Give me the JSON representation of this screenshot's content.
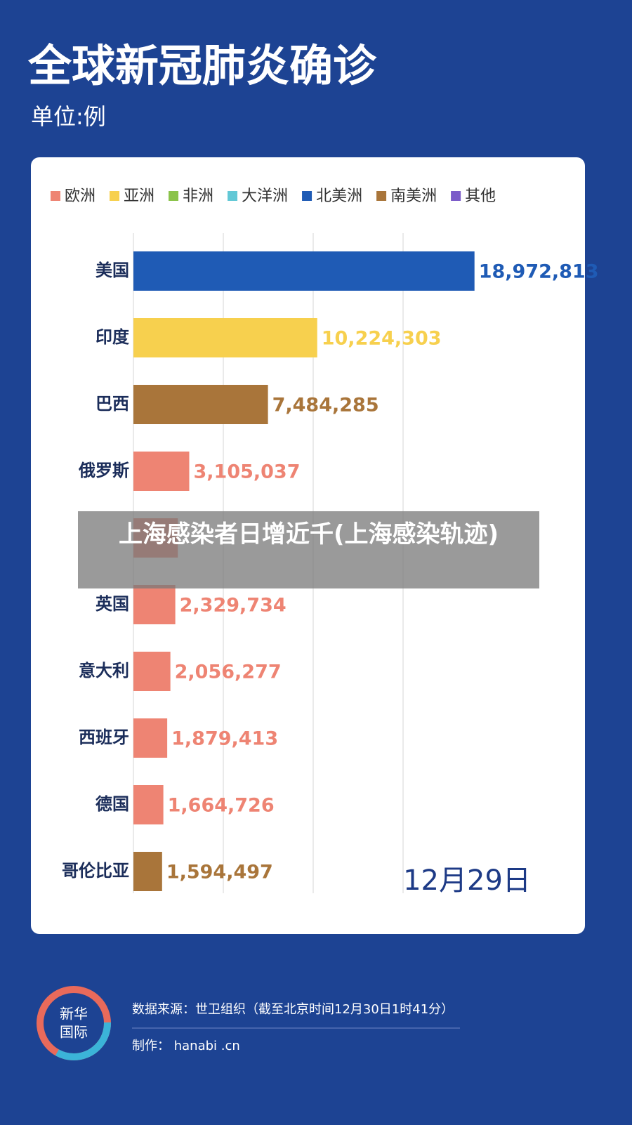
{
  "chart_data": {
    "type": "bar",
    "orientation": "horizontal",
    "title": "全球新冠肺炎确诊",
    "subtitle": "单位:例",
    "legend": [
      {
        "name": "欧洲",
        "color": "#ee8473"
      },
      {
        "name": "亚洲",
        "color": "#f7d04e"
      },
      {
        "name": "非洲",
        "color": "#8bc34a"
      },
      {
        "name": "大洋洲",
        "color": "#62c8d6"
      },
      {
        "name": "北美洲",
        "color": "#1f5bb5"
      },
      {
        "name": "南美洲",
        "color": "#a9753a"
      },
      {
        "name": "其他",
        "color": "#7b5bc9"
      }
    ],
    "categories": [
      "美国",
      "印度",
      "巴西",
      "俄罗斯",
      null,
      "英国",
      "意大利",
      "西班牙",
      "德国",
      "哥伦比亚"
    ],
    "values": [
      18972813,
      10224303,
      7484285,
      3105037,
      2470000,
      2329734,
      2056277,
      1879413,
      1664726,
      1594497
    ],
    "value_labels": [
      "18,972,813",
      "10,224,303",
      "7,484,285",
      "3,105,037",
      null,
      "2,329,734",
      "2,056,277",
      "1,879,413",
      "1,664,726",
      "1,594,497"
    ],
    "colors": [
      "#1f5bb5",
      "#f7d04e",
      "#a9753a",
      "#ee8473",
      "#ee8473",
      "#ee8473",
      "#ee8473",
      "#ee8473",
      "#ee8473",
      "#a9753a"
    ],
    "xlim": [
      0,
      25000000
    ],
    "xticks": [
      0,
      5000000,
      10000000,
      15000000
    ],
    "grid": true,
    "annotation": "12月29日",
    "overlay": "上海感染者日增近千(上海感染轨迹)",
    "source": "数据来源：世卫组织（截至北京时间12月30日1时41分）",
    "credit": "制作： hanabi .cn",
    "logo": [
      "新华",
      "国际"
    ]
  }
}
